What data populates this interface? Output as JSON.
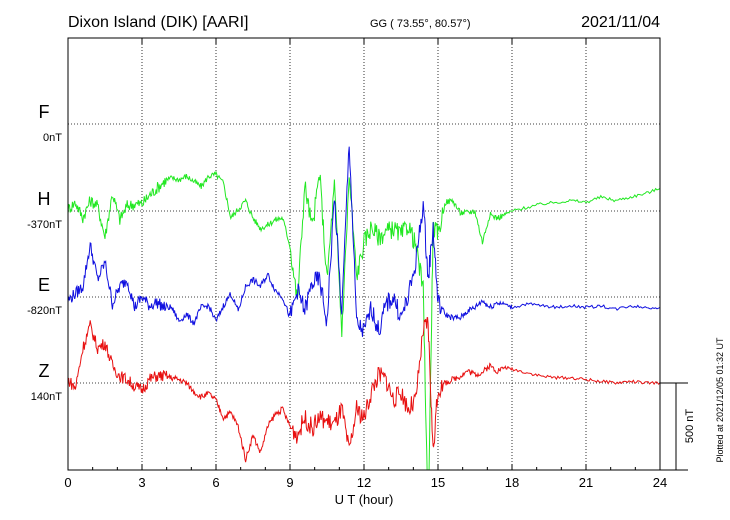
{
  "header": {
    "station": "Dixon Island (DIK)  [AARI]",
    "coords": "GG ( 73.55°,  80.57°)",
    "date": "2021/11/04"
  },
  "footer": {
    "plotted": "Plotted at 2021/12/05 01:32 UT",
    "scale_label": "500 nT"
  },
  "chart_data": {
    "type": "line",
    "title": "Dixon Island (DIK)  [AARI]",
    "xlabel": "U T (hour)",
    "xlim": [
      0,
      24
    ],
    "xticks": [
      "0",
      "3",
      "6",
      "9",
      "12",
      "15",
      "18",
      "21",
      "24"
    ],
    "grid": true,
    "scale_bar_nT": 500,
    "series": [
      {
        "name": "F",
        "baseline_label": "0nT",
        "color": "#ffa500",
        "x": [],
        "y": []
      },
      {
        "name": "H",
        "baseline_label": "-370nT",
        "color": "#22e822",
        "x": [
          0,
          0.3,
          0.6,
          0.9,
          1.2,
          1.5,
          1.8,
          2.1,
          2.4,
          2.7,
          3.0,
          3.3,
          3.6,
          3.9,
          4.2,
          4.5,
          4.8,
          5.1,
          5.4,
          5.7,
          6.0,
          6.3,
          6.6,
          6.9,
          7.2,
          7.5,
          7.8,
          8.1,
          8.4,
          8.7,
          9.0,
          9.3,
          9.6,
          9.9,
          10.2,
          10.5,
          10.8,
          11.1,
          11.4,
          11.7,
          12.0,
          12.3,
          12.6,
          12.9,
          13.2,
          13.5,
          13.8,
          14.1,
          14.4,
          14.6,
          14.8,
          15.0,
          15.3,
          15.6,
          15.9,
          16.2,
          16.5,
          16.8,
          17.1,
          17.4,
          17.7,
          18.0,
          18.6,
          19.2,
          19.8,
          20.4,
          21.0,
          21.6,
          22.2,
          22.8,
          23.4,
          24.0
        ],
        "y": [
          10,
          50,
          -40,
          60,
          30,
          -150,
          100,
          -50,
          30,
          40,
          40,
          90,
          130,
          170,
          190,
          180,
          200,
          170,
          140,
          200,
          210,
          160,
          -40,
          10,
          60,
          -40,
          -100,
          -80,
          -50,
          -40,
          -200,
          -520,
          150,
          -100,
          220,
          -400,
          150,
          -700,
          200,
          -380,
          -180,
          -90,
          -150,
          -120,
          -100,
          -140,
          -80,
          -200,
          -450,
          -1800,
          -100,
          -130,
          50,
          60,
          -10,
          -10,
          0,
          -180,
          -20,
          -40,
          -20,
          0,
          20,
          40,
          50,
          60,
          50,
          80,
          60,
          80,
          100,
          130
        ]
      },
      {
        "name": "E",
        "baseline_label": "-820nT",
        "color": "#1010e0",
        "x": [
          0,
          0.3,
          0.6,
          0.9,
          1.2,
          1.5,
          1.8,
          2.1,
          2.4,
          2.7,
          3.0,
          3.3,
          3.6,
          3.9,
          4.2,
          4.5,
          4.8,
          5.1,
          5.4,
          5.7,
          6.0,
          6.3,
          6.6,
          6.9,
          7.2,
          7.5,
          7.8,
          8.1,
          8.4,
          8.7,
          9.0,
          9.3,
          9.6,
          9.9,
          10.2,
          10.5,
          10.8,
          11.1,
          11.4,
          11.7,
          12.0,
          12.3,
          12.6,
          12.9,
          13.2,
          13.5,
          13.8,
          14.1,
          14.4,
          14.6,
          14.8,
          15.0,
          15.3,
          15.6,
          15.9,
          16.2,
          16.5,
          16.8,
          17.1,
          17.4,
          17.7,
          18.0,
          18.6,
          19.2,
          19.8,
          20.4,
          21.0,
          21.6,
          22.2,
          22.8,
          23.4,
          24.0
        ],
        "y": [
          -20,
          20,
          60,
          300,
          100,
          200,
          -40,
          60,
          100,
          -60,
          0,
          -50,
          -30,
          -60,
          -60,
          -140,
          -100,
          -150,
          -60,
          -50,
          -140,
          -50,
          20,
          -80,
          60,
          100,
          60,
          130,
          40,
          0,
          -120,
          40,
          -80,
          80,
          100,
          -150,
          580,
          -100,
          900,
          -150,
          -200,
          -60,
          -200,
          -40,
          0,
          -120,
          0,
          200,
          540,
          100,
          400,
          -30,
          -100,
          -120,
          -120,
          -80,
          -60,
          -20,
          -60,
          -30,
          -40,
          -60,
          -40,
          -50,
          -60,
          -50,
          -60,
          -50,
          -70,
          -50,
          -60,
          -60
        ]
      },
      {
        "name": "Z",
        "baseline_label": "140nT",
        "color": "#e81010",
        "x": [
          0,
          0.3,
          0.6,
          0.9,
          1.2,
          1.5,
          1.8,
          2.1,
          2.4,
          2.7,
          3.0,
          3.3,
          3.6,
          3.9,
          4.2,
          4.5,
          4.8,
          5.1,
          5.4,
          5.7,
          6.0,
          6.3,
          6.6,
          6.9,
          7.2,
          7.5,
          7.8,
          8.1,
          8.4,
          8.7,
          9.0,
          9.3,
          9.6,
          9.9,
          10.2,
          10.5,
          10.8,
          11.1,
          11.4,
          11.7,
          12.0,
          12.3,
          12.6,
          12.9,
          13.2,
          13.5,
          13.8,
          14.1,
          14.4,
          14.6,
          14.8,
          15.0,
          15.3,
          15.6,
          15.9,
          16.2,
          16.5,
          16.8,
          17.1,
          17.4,
          17.7,
          18.0,
          18.6,
          19.2,
          19.8,
          20.4,
          21.0,
          21.6,
          22.2,
          22.8,
          23.4,
          24.0
        ],
        "y": [
          20,
          -30,
          200,
          330,
          200,
          230,
          100,
          40,
          20,
          -20,
          -40,
          20,
          40,
          40,
          30,
          20,
          0,
          -50,
          -80,
          -60,
          -100,
          -200,
          -170,
          -250,
          -440,
          -300,
          -400,
          -250,
          -180,
          -150,
          -250,
          -300,
          -200,
          -260,
          -200,
          -220,
          -240,
          -150,
          -400,
          -150,
          -200,
          -50,
          50,
          20,
          -100,
          -50,
          -150,
          -100,
          300,
          350,
          -400,
          -40,
          0,
          20,
          40,
          70,
          50,
          60,
          100,
          70,
          90,
          80,
          60,
          40,
          30,
          30,
          20,
          10,
          0,
          10,
          0,
          0
        ]
      }
    ]
  }
}
